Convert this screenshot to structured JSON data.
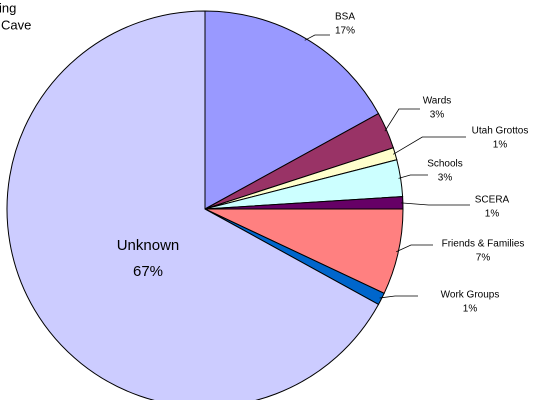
{
  "chart_data": {
    "type": "pie",
    "title": [
      "ing",
      "Cave"
    ],
    "categories": [
      "BSA",
      "Wards",
      "Utah Grottos",
      "Schools",
      "SCERA",
      "Friends & Families",
      "Work Groups",
      "Unknown"
    ],
    "values": [
      17,
      3,
      1,
      3,
      1,
      7,
      1,
      67
    ],
    "value_labels": [
      "17%",
      "3%",
      "1%",
      "3%",
      "1%",
      "7%",
      "1%",
      "67%"
    ],
    "colors": [
      "#9999ff",
      "#993366",
      "#ffffcc",
      "#ccffff",
      "#660066",
      "#ff8080",
      "#0066cc",
      "#ccccff"
    ]
  }
}
